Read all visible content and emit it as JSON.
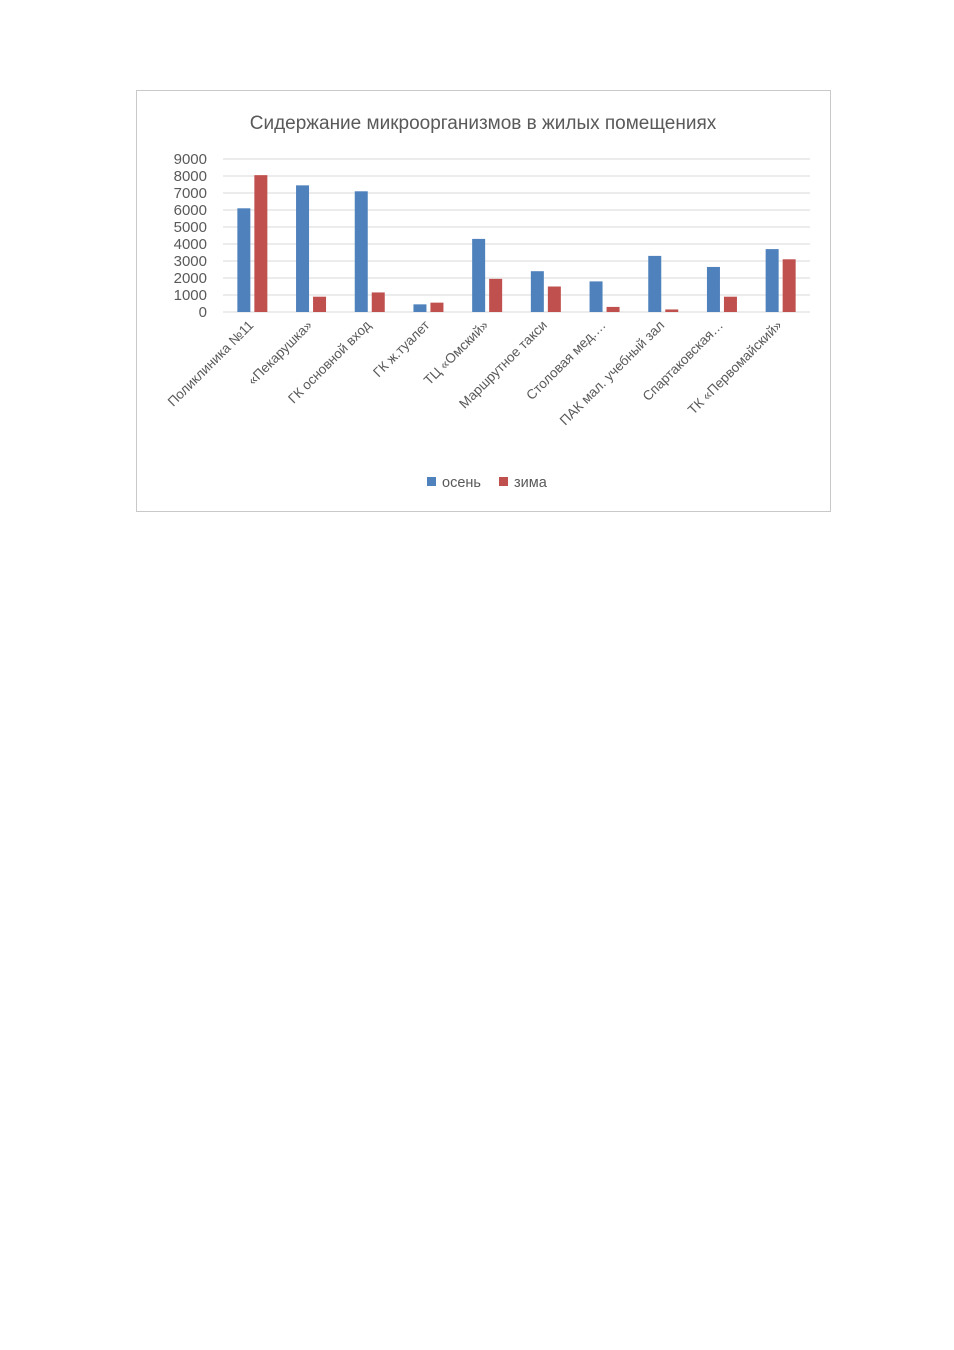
{
  "chart_data": {
    "type": "bar",
    "title": "Сидержание микроорганизмов в жилых помещениях",
    "xlabel": "",
    "ylabel": "",
    "categories": [
      "Поликлиника №11",
      "«Пекарушка»",
      "ГК основной вход",
      "ГК ж.туалет",
      "ТЦ «Омский»",
      "Маршрутное такси",
      "Столовая мед.…",
      "ПАК мал. учебный зал",
      "Спартаковская…",
      "ТК «Первомайский»"
    ],
    "series": [
      {
        "name": "осень",
        "color": "#4f81bd",
        "values": [
          6100,
          7450,
          7100,
          450,
          4300,
          2400,
          1800,
          3300,
          2650,
          3700
        ]
      },
      {
        "name": "зима",
        "color": "#c0504d",
        "values": [
          8050,
          900,
          1150,
          550,
          1950,
          1500,
          300,
          150,
          900,
          3100
        ]
      }
    ],
    "ylim": [
      0,
      9000
    ],
    "yticks": [
      0,
      1000,
      2000,
      3000,
      4000,
      5000,
      6000,
      7000,
      8000,
      9000
    ],
    "grid": true,
    "legend_position": "bottom"
  }
}
